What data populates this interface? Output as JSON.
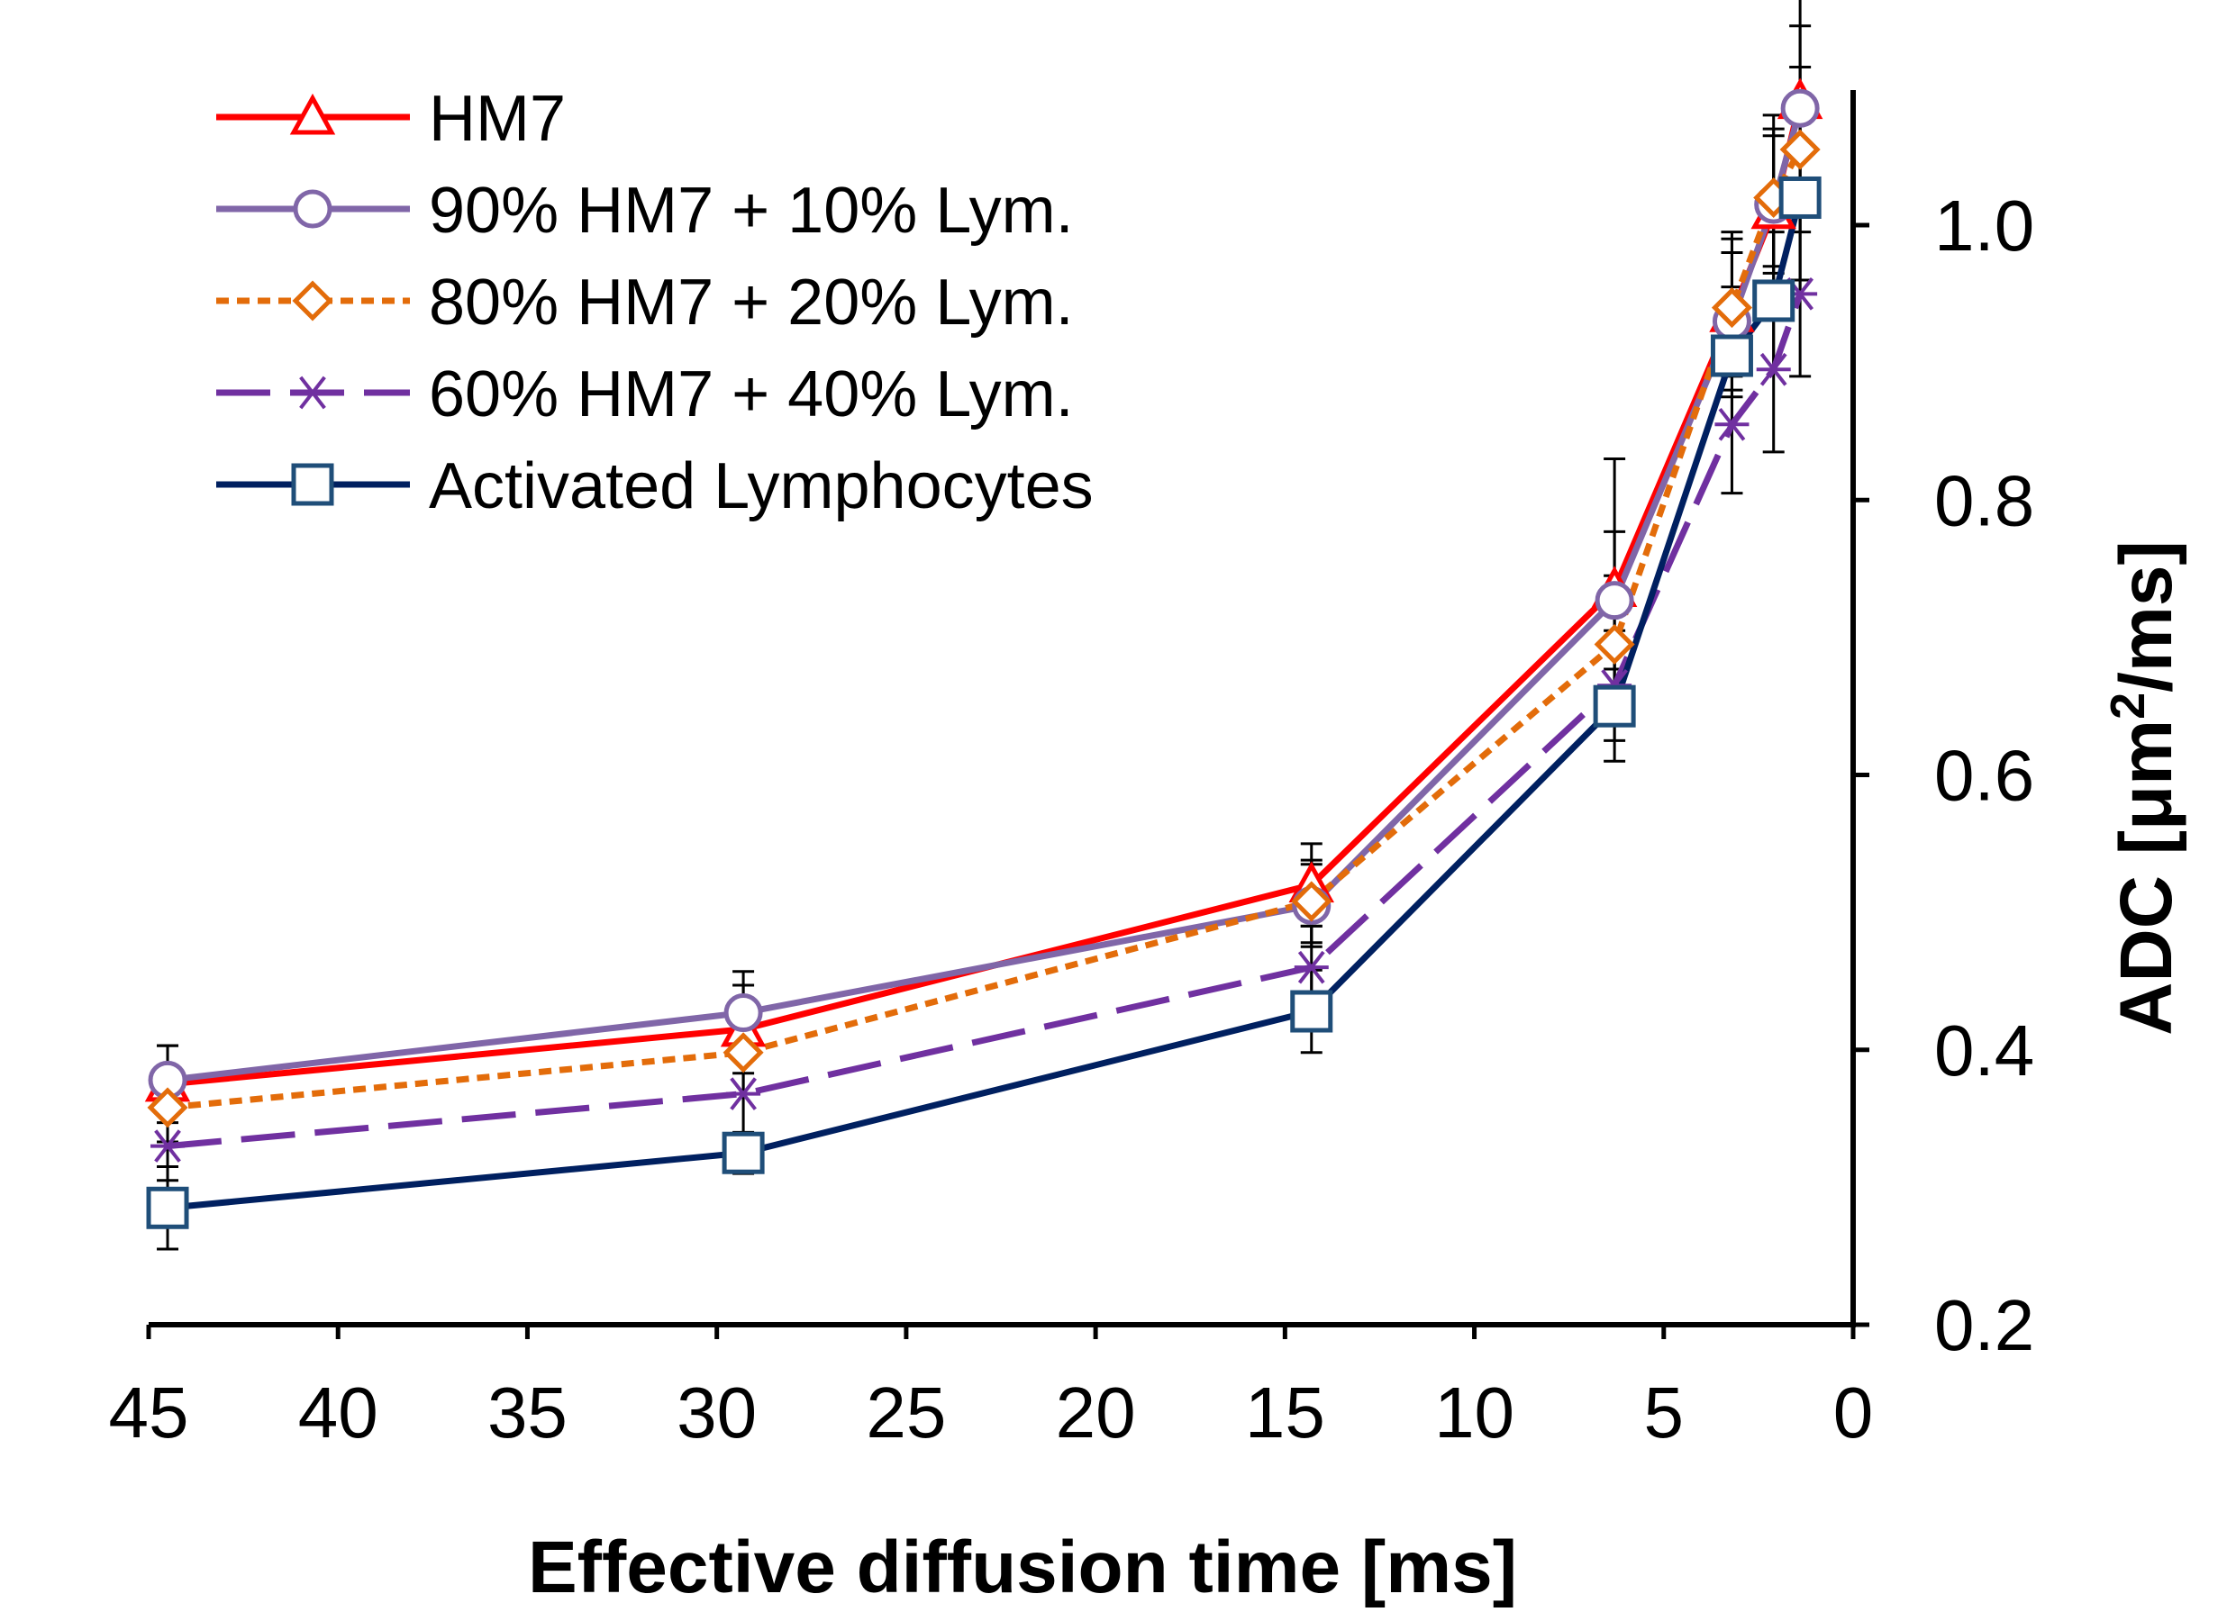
{
  "chart_data": {
    "type": "line",
    "title": "",
    "xlabel": "Effective diffusion time [ms]",
    "ylabel": "ADC [μm²/ms]",
    "ylabel_parts": {
      "before": "ADC [μm",
      "sup": "2",
      "after": "/ms]"
    },
    "x_reversed": true,
    "xlim": [
      45,
      0
    ],
    "ylim": [
      0.2,
      1.1
    ],
    "xticks": [
      45,
      40,
      35,
      30,
      25,
      20,
      15,
      10,
      5,
      0
    ],
    "xtick_labels": [
      "45",
      "40",
      "35",
      "30",
      "25",
      "20",
      "15",
      "10",
      "5",
      "0"
    ],
    "yticks": [
      0.2,
      0.4,
      0.6,
      0.8,
      1.0
    ],
    "ytick_labels": [
      "0.2",
      "0.4",
      "0.6",
      "0.8",
      "1.0"
    ],
    "y_axis_side": "right",
    "legend_position": "top-left",
    "grid": false,
    "x": [
      44.5,
      29.3,
      14.3,
      6.3,
      3.2,
      2.1,
      1.4
    ],
    "series": [
      {
        "name": "HM7",
        "color": "#ff0000",
        "marker": "triangle",
        "dash": "solid",
        "values": [
          0.375,
          0.415,
          0.52,
          0.735,
          0.935,
          1.01,
          1.09
        ],
        "errors": [
          0.028,
          0.032,
          0.03,
          0.095,
          0.06,
          0.07,
          0.13
        ]
      },
      {
        "name": "90% HM7 + 10% Lym.",
        "color": "#8066a8",
        "marker": "circle",
        "dash": "solid",
        "values": [
          0.378,
          0.427,
          0.505,
          0.727,
          0.93,
          1.015,
          1.085
        ],
        "errors": [
          0.025,
          0.03,
          0.03,
          0.05,
          0.05,
          0.05,
          0.06
        ]
      },
      {
        "name": "80% HM7 + 20% Lym.",
        "color": "#e36c0a",
        "marker": "diamond",
        "dash": "short-dash",
        "values": [
          0.358,
          0.398,
          0.508,
          0.695,
          0.94,
          1.02,
          1.055
        ],
        "errors": [
          0.025,
          0.03,
          0.03,
          0.05,
          0.05,
          0.05,
          0.06
        ]
      },
      {
        "name": "60% HM7 + 40% Lym.",
        "color": "#7030a0",
        "marker": "asterisk",
        "dash": "long-dash",
        "values": [
          0.33,
          0.368,
          0.46,
          0.665,
          0.855,
          0.895,
          0.95
        ],
        "errors": [
          0.025,
          0.03,
          0.03,
          0.04,
          0.05,
          0.06,
          0.06
        ]
      },
      {
        "name": "Activated Lymphocytes",
        "color": "#002060",
        "marker_color": "#1f4e79",
        "marker": "square",
        "dash": "solid",
        "values": [
          0.285,
          0.325,
          0.428,
          0.65,
          0.905,
          0.945,
          1.02
        ],
        "errors": [
          0.03,
          0.015,
          0.03,
          0.04,
          0.05,
          0.05,
          0.07
        ]
      }
    ]
  }
}
